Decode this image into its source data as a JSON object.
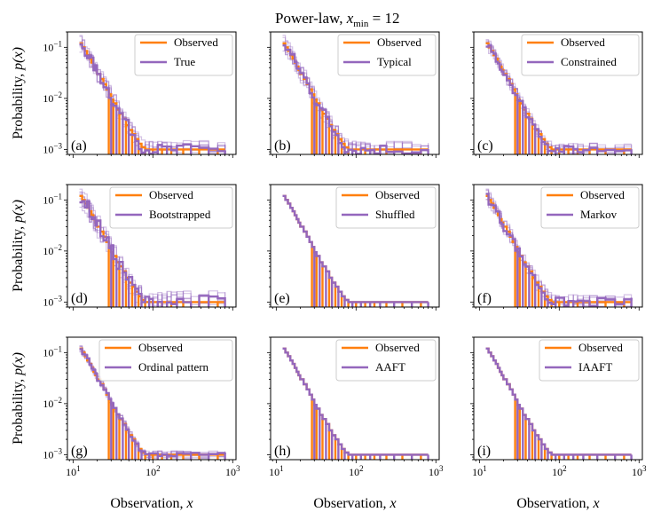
{
  "figure": {
    "title_text": "Power-law, ",
    "title_math": "x",
    "title_sub": "min",
    "title_eq": " = 12",
    "ylabel_text": "Probability, ",
    "ylabel_math": "p(x)",
    "xlabel_text": "Observation, ",
    "xlabel_math": "x"
  },
  "colors": {
    "observed": "#ff7f0e",
    "surrogate": "#9467bd"
  },
  "chart_data": {
    "type": "line",
    "xscale": "log",
    "yscale": "log",
    "xlim": [
      8.5,
      1100
    ],
    "ylim": [
      0.0008,
      0.2
    ],
    "xticks": [
      {
        "v": 10,
        "b": "10",
        "e": "1"
      },
      {
        "v": 100,
        "b": "10",
        "e": "2"
      },
      {
        "v": 1000,
        "b": "10",
        "e": "3"
      }
    ],
    "yticks": [
      {
        "v": 0.1,
        "b": "10",
        "e": "−1"
      },
      {
        "v": 0.01,
        "b": "10",
        "e": "−2"
      },
      {
        "v": 0.001,
        "b": "10",
        "e": "−3"
      }
    ],
    "observed_series": {
      "name": "Observed",
      "x": [
        12,
        13,
        14,
        15,
        16,
        17,
        18,
        19,
        20,
        22,
        24,
        26,
        28,
        30,
        32,
        35,
        38,
        42,
        46,
        50,
        55,
        60,
        66,
        72,
        80,
        90,
        100,
        115,
        130,
        150,
        170,
        200,
        240,
        300,
        380,
        500,
        650,
        800
      ],
      "y": [
        0.12,
        0.1,
        0.085,
        0.07,
        0.06,
        0.05,
        0.042,
        0.036,
        0.03,
        0.024,
        0.019,
        0.015,
        0.012,
        0.0095,
        0.008,
        0.006,
        0.005,
        0.004,
        0.003,
        0.0024,
        0.002,
        0.0016,
        0.0013,
        0.0011,
        0.001,
        0.001,
        0.001,
        0.001,
        0.001,
        0.001,
        0.001,
        0.001,
        0.001,
        0.001,
        0.001,
        0.001,
        0.001,
        0.001
      ]
    },
    "panels": [
      {
        "label": "(a)",
        "legend": [
          "Observed",
          "True"
        ],
        "surrogate": "True",
        "ensemble": true,
        "spread": 0.35,
        "legend_width": 110
      },
      {
        "label": "(b)",
        "legend": [
          "Observed",
          "Typical"
        ],
        "surrogate": "Typical",
        "ensemble": true,
        "spread": 0.35,
        "legend_width": 110
      },
      {
        "label": "(c)",
        "legend": [
          "Observed",
          "Constrained"
        ],
        "surrogate": "Constrained",
        "ensemble": true,
        "spread": 0.25,
        "legend_width": 132
      },
      {
        "label": "(d)",
        "legend": [
          "Observed",
          "Bootstrapped"
        ],
        "surrogate": "Bootstrapped",
        "ensemble": true,
        "spread": 0.45,
        "legend_width": 138
      },
      {
        "label": "(e)",
        "legend": [
          "Observed",
          "Shuffled"
        ],
        "surrogate": "Shuffled",
        "ensemble": false,
        "spread": 0,
        "legend_width": 112
      },
      {
        "label": "(f)",
        "legend": [
          "Observed",
          "Markov"
        ],
        "surrogate": "Markov",
        "ensemble": true,
        "spread": 0.3,
        "legend_width": 110
      },
      {
        "label": "(g)",
        "legend": [
          "Observed",
          "Ordinal pattern"
        ],
        "surrogate": "Ordinal pattern",
        "ensemble": true,
        "spread": 0.15,
        "legend_width": 150
      },
      {
        "label": "(h)",
        "legend": [
          "Observed",
          "AAFT"
        ],
        "surrogate": "AAFT",
        "ensemble": false,
        "spread": 0,
        "legend_width": 112
      },
      {
        "label": "(i)",
        "legend": [
          "Observed",
          "IAAFT"
        ],
        "surrogate": "IAAFT",
        "ensemble": false,
        "spread": 0,
        "legend_width": 112
      }
    ]
  }
}
